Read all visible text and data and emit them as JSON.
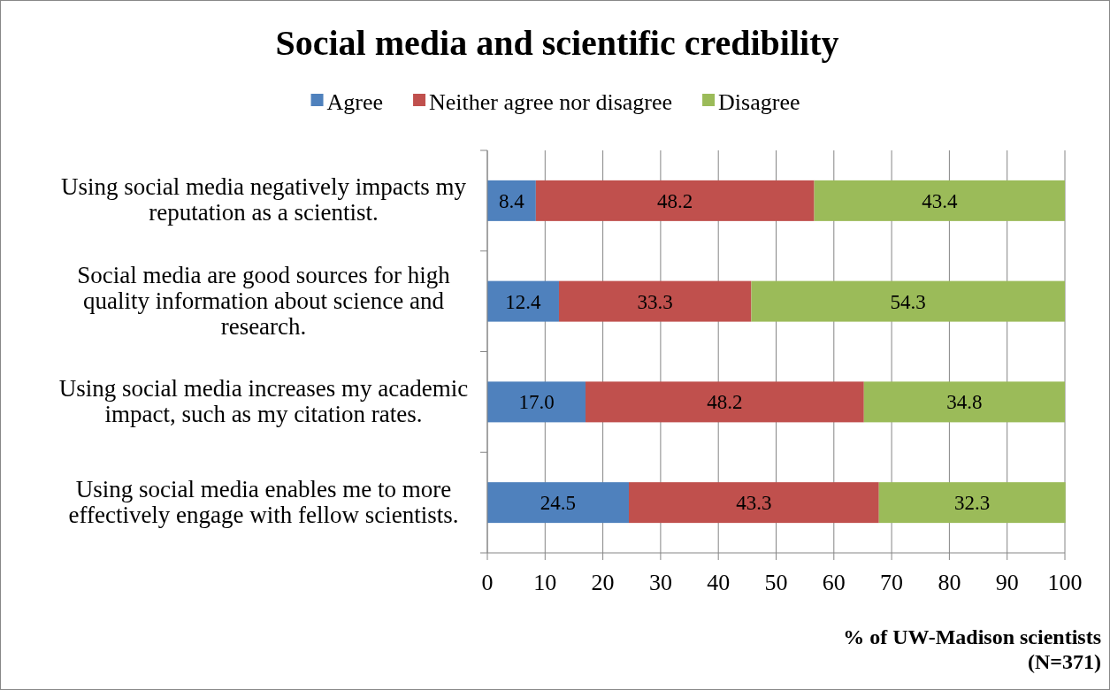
{
  "chart_data": {
    "type": "bar",
    "title": "Social media and scientific credibility",
    "orientation": "horizontal",
    "stacked": true,
    "xlabel": "% of UW-Madison scientists (N=371)",
    "categories": [
      "Using social media negatively impacts my reputation as a scientist.",
      "Social media are good sources for high quality information about science and research.",
      "Using social media increases my academic impact, such as my citation rates.",
      "Using social media enables me to more effectively engage with fellow scientists."
    ],
    "series": [
      {
        "name": "Agree",
        "color": "#4f81bd",
        "values": [
          8.4,
          12.4,
          17.0,
          24.5
        ],
        "value_labels": [
          "8.4",
          "12.4",
          "17.0",
          "24.5"
        ]
      },
      {
        "name": "Neither agree nor disagree",
        "color": "#c0504d",
        "values": [
          48.2,
          33.3,
          48.2,
          43.3
        ],
        "value_labels": [
          "48.2",
          "33.3",
          "48.2",
          "43.3"
        ]
      },
      {
        "name": "Disagree",
        "color": "#9bbb59",
        "values": [
          43.4,
          54.3,
          34.8,
          32.3
        ],
        "value_labels": [
          "43.4",
          "54.3",
          "34.8",
          "32.3"
        ]
      }
    ],
    "xlim": [
      0,
      100
    ],
    "xticks": [
      0,
      10,
      20,
      30,
      40,
      50,
      60,
      70,
      80,
      90,
      100
    ],
    "grid": "x",
    "legend": "top"
  }
}
